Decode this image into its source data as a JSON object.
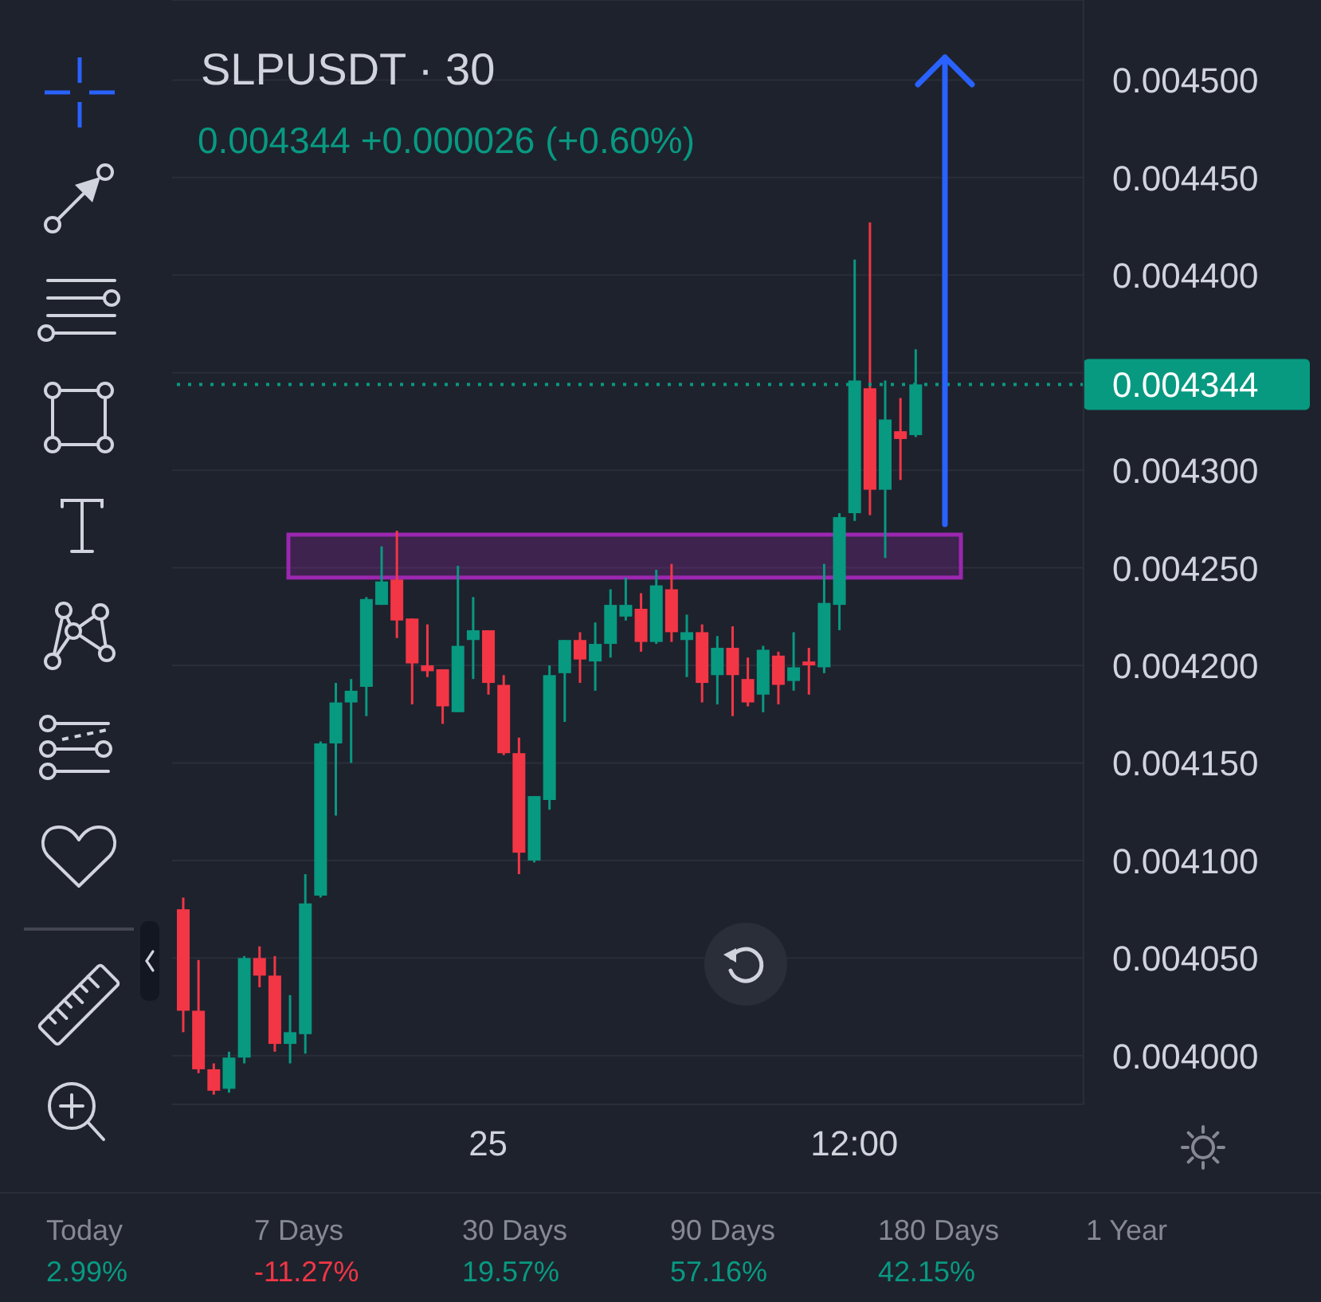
{
  "chart_data": {
    "type": "candlestick",
    "title": "SLPUSDT · 30",
    "subtitle": "0.004344 +0.000026 (+0.60%)",
    "categories": [
      null,
      null,
      null,
      null,
      null,
      null,
      null,
      null,
      null,
      null,
      null,
      null,
      null,
      null,
      null,
      null,
      null,
      null,
      null,
      null,
      "25",
      null,
      null,
      null,
      null,
      null,
      null,
      null,
      null,
      null,
      null,
      null,
      null,
      null,
      null,
      null,
      null,
      null,
      null,
      null,
      null,
      null,
      null,
      null,
      "12:00",
      null,
      null,
      null,
      null,
      null,
      null,
      null,
      null,
      null,
      null,
      null,
      null,
      null,
      null
    ],
    "ohlc": [
      [
        0.004075,
        0.004081,
        0.004012,
        0.004023
      ],
      [
        0.004023,
        0.004049,
        0.003991,
        0.003993
      ],
      [
        0.003993,
        0.003996,
        0.00398,
        0.003982
      ],
      [
        0.003983,
        0.004002,
        0.003981,
        0.003999
      ],
      [
        0.003999,
        0.004051,
        0.003996,
        0.00405
      ],
      [
        0.00405,
        0.004056,
        0.004035,
        0.004041
      ],
      [
        0.004041,
        0.004051,
        0.004002,
        0.004006
      ],
      [
        0.004006,
        0.004031,
        0.003996,
        0.004012
      ],
      [
        0.004011,
        0.004093,
        0.004001,
        0.004078
      ],
      [
        0.004082,
        0.004161,
        0.004081,
        0.00416
      ],
      [
        0.00416,
        0.004191,
        0.004123,
        0.004181
      ],
      [
        0.004181,
        0.004193,
        0.00415,
        0.004187
      ],
      [
        0.004189,
        0.004235,
        0.004174,
        0.004234
      ],
      [
        0.004231,
        0.004261,
        0.004231,
        0.004243
      ],
      [
        0.004244,
        0.004269,
        0.004214,
        0.004223
      ],
      [
        0.004224,
        0.004224,
        0.00418,
        0.004201
      ],
      [
        0.0042,
        0.004221,
        0.004194,
        0.004197
      ],
      [
        0.004198,
        0.004198,
        0.00417,
        0.004179
      ],
      [
        0.004176,
        0.004251,
        0.004176,
        0.00421
      ],
      [
        0.004213,
        0.004235,
        0.004193,
        0.004218
      ],
      [
        0.004218,
        0.004218,
        0.004185,
        0.004191
      ],
      [
        0.00419,
        0.004195,
        0.004154,
        0.004155
      ],
      [
        0.004155,
        0.004163,
        0.004093,
        0.004104
      ],
      [
        0.0041,
        0.004133,
        0.004099,
        0.004133
      ],
      [
        0.004131,
        0.0042,
        0.004126,
        0.004195
      ],
      [
        0.004196,
        0.004213,
        0.004171,
        0.004213
      ],
      [
        0.004213,
        0.004217,
        0.004191,
        0.004203
      ],
      [
        0.004202,
        0.004222,
        0.004187,
        0.004211
      ],
      [
        0.004211,
        0.004239,
        0.004204,
        0.004231
      ],
      [
        0.004225,
        0.004245,
        0.004223,
        0.004231
      ],
      [
        0.004229,
        0.004237,
        0.004207,
        0.004212
      ],
      [
        0.004212,
        0.004249,
        0.004211,
        0.004241
      ],
      [
        0.004239,
        0.004252,
        0.004212,
        0.004217
      ],
      [
        0.004213,
        0.004226,
        0.004194,
        0.004217
      ],
      [
        0.004217,
        0.004221,
        0.004181,
        0.004191
      ],
      [
        0.004195,
        0.004215,
        0.00418,
        0.004209
      ],
      [
        0.004209,
        0.00422,
        0.004174,
        0.004195
      ],
      [
        0.004193,
        0.004204,
        0.004179,
        0.004181
      ],
      [
        0.004185,
        0.00421,
        0.004176,
        0.004208
      ],
      [
        0.004205,
        0.004207,
        0.00418,
        0.00419
      ],
      [
        0.004192,
        0.004217,
        0.004187,
        0.004199
      ],
      [
        0.004202,
        0.004209,
        0.004185,
        0.0042
      ],
      [
        0.004199,
        0.004252,
        0.004196,
        0.004232
      ],
      [
        0.004231,
        0.004278,
        0.004218,
        0.004276
      ],
      [
        0.004278,
        0.004408,
        0.004274,
        0.004346
      ],
      [
        0.004342,
        0.004427,
        0.004277,
        0.00429
      ],
      [
        0.00429,
        0.004346,
        0.004255,
        0.004326
      ],
      [
        0.00432,
        0.004337,
        0.004295,
        0.004316
      ],
      [
        0.004318,
        0.004362,
        0.004317,
        0.004344
      ],
      null,
      null,
      null,
      null,
      null,
      null,
      null,
      null,
      null,
      null
    ],
    "colors": [
      "#f23645",
      "#f23645",
      "#f23645",
      "#089981",
      "#089981",
      "#f23645",
      "#f23645",
      "#089981",
      "#089981",
      "#089981",
      "#089981",
      "#089981",
      "#089981",
      "#089981",
      "#f23645",
      "#f23645",
      "#f23645",
      "#f23645",
      "#089981",
      "#089981",
      "#f23645",
      "#f23645",
      "#f23645",
      "#089981",
      "#089981",
      "#089981",
      "#f23645",
      "#089981",
      "#089981",
      "#089981",
      "#f23645",
      "#089981",
      "#f23645",
      "#089981",
      "#f23645",
      "#089981",
      "#f23645",
      "#f23645",
      "#089981",
      "#f23645",
      "#089981",
      "#f23645",
      "#089981",
      "#089981",
      "#089981",
      "#f23645",
      "#089981",
      "#f23645",
      "#089981",
      null,
      null,
      null,
      null,
      null,
      null,
      null,
      null,
      null,
      null
    ],
    "ylim": [
      0.003975,
      0.004541
    ],
    "yticks": [
      {
        "value": 0.004,
        "label": "0.004000"
      },
      {
        "value": 0.00405,
        "label": "0.004050"
      },
      {
        "value": 0.0041,
        "label": "0.004100"
      },
      {
        "value": 0.00415,
        "label": "0.004150"
      },
      {
        "value": 0.0042,
        "label": "0.004200"
      },
      {
        "value": 0.00425,
        "label": "0.004250"
      },
      {
        "value": 0.0043,
        "label": "0.004300"
      },
      {
        "value": 0.00435,
        "label": null
      },
      {
        "value": 0.0044,
        "label": "0.004400"
      },
      {
        "value": 0.00445,
        "label": "0.004450"
      },
      {
        "value": 0.0045,
        "label": "0.004500"
      }
    ],
    "grid": true,
    "ref_lines": [
      {
        "axis": "y",
        "value": 0.004344,
        "label": "0.004344",
        "color": "#089981",
        "line_style": "dotted"
      }
    ],
    "bands": [
      {
        "axis": "y",
        "from": 0.004245,
        "to": 0.004267,
        "color": "#9c27b0"
      }
    ],
    "annotations": [
      "Today",
      "2.99%",
      "7 Days",
      "-11.27%",
      "30 Days",
      "19.57%",
      "90 Days",
      "57.16%",
      "180 Days",
      "42.15%",
      "1 Year"
    ]
  }
}
